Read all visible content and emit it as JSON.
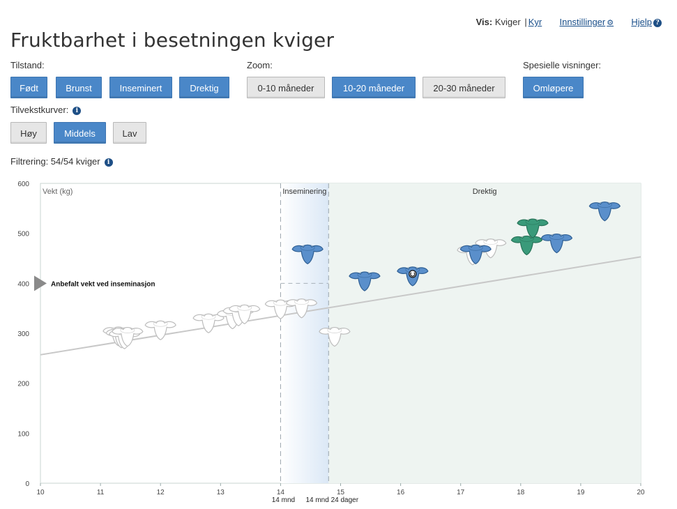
{
  "page": {
    "title": "Fruktbarhet i besetningen kviger"
  },
  "topnav": {
    "vis_label": "Vis:",
    "vis_current": "Kviger",
    "separator": "|",
    "vis_alt": "Kyr",
    "settings": "Innstillinger",
    "settings_icon": "gear-icon",
    "help": "Hjelp",
    "help_icon": "question-circle-icon"
  },
  "tilstand": {
    "label": "Tilstand:",
    "buttons": [
      "Født",
      "Brunst",
      "Inseminert",
      "Drektig"
    ]
  },
  "zoom": {
    "label": "Zoom:",
    "buttons": [
      "0-10 måneder",
      "10-20 måneder",
      "20-30 måneder"
    ],
    "active": "10-20 måneder"
  },
  "special": {
    "label": "Spesielle visninger:",
    "buttons": [
      "Omløpere"
    ]
  },
  "curves": {
    "label": "Tilvekstkurver:",
    "buttons": [
      "Høy",
      "Middels",
      "Lav"
    ],
    "active": "Middels"
  },
  "filter": {
    "text": "Filtrering: 54/54 kviger"
  },
  "colors": {
    "accent": "#4a87c8",
    "inseminert": "#5a8fcb",
    "drektig_dark": "#3a9a7a",
    "drektig_bg": "#eef4f1",
    "insem_band": "#dbe8f6"
  },
  "chart_data": {
    "type": "scatter",
    "ylabel": "Vekt (kg)",
    "xlim": [
      10,
      20
    ],
    "ylim": [
      0,
      600
    ],
    "x_ticks": [
      10,
      11,
      12,
      13,
      14,
      15,
      16,
      17,
      18,
      19,
      20
    ],
    "y_ticks": [
      0,
      100,
      200,
      300,
      400,
      500,
      600
    ],
    "zones": [
      {
        "label": "Inseminering",
        "x_start": 14.0,
        "x_end": 14.8
      },
      {
        "label": "Drektig",
        "x_start": 14.8,
        "x_end": 20
      }
    ],
    "vline_labels": [
      "14 mnd",
      "14 mnd 24 dager"
    ],
    "recommended": {
      "label": "Anbefalt vekt ved inseminasjon",
      "y": 400
    },
    "growth_curve": {
      "x": [
        10,
        20
      ],
      "y": [
        257,
        453
      ]
    },
    "series": [
      {
        "name": "Født",
        "points": [
          {
            "x": 11.3,
            "y": 296
          },
          {
            "x": 11.35,
            "y": 292
          },
          {
            "x": 11.4,
            "y": 290
          },
          {
            "x": 11.45,
            "y": 295
          },
          {
            "x": 12.0,
            "y": 308
          },
          {
            "x": 12.8,
            "y": 322
          },
          {
            "x": 13.2,
            "y": 330
          },
          {
            "x": 13.3,
            "y": 336
          },
          {
            "x": 13.4,
            "y": 340
          },
          {
            "x": 14.0,
            "y": 350
          },
          {
            "x": 14.35,
            "y": 352
          },
          {
            "x": 14.9,
            "y": 295
          },
          {
            "x": 17.2,
            "y": 458
          },
          {
            "x": 17.5,
            "y": 472
          }
        ]
      },
      {
        "name": "Inseminert",
        "points": [
          {
            "x": 14.45,
            "y": 460
          },
          {
            "x": 15.4,
            "y": 406
          },
          {
            "x": 16.2,
            "y": 416
          },
          {
            "x": 17.25,
            "y": 460
          },
          {
            "x": 18.6,
            "y": 482
          },
          {
            "x": 19.4,
            "y": 546
          }
        ]
      },
      {
        "name": "Drektig",
        "points": [
          {
            "x": 18.1,
            "y": 478
          },
          {
            "x": 18.2,
            "y": 512
          }
        ]
      }
    ]
  }
}
